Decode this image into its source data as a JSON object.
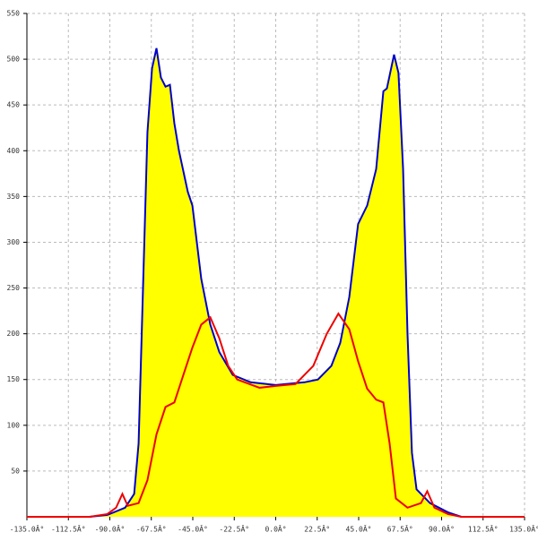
{
  "chart_data": {
    "type": "line",
    "xlim": [
      -135,
      135
    ],
    "ylim": [
      0,
      550
    ],
    "xticks": [
      {
        "value": -135,
        "label": "-135.0Â°"
      },
      {
        "value": -112.5,
        "label": "-112.5Â°"
      },
      {
        "value": -90,
        "label": "-90.0Â°"
      },
      {
        "value": -67.5,
        "label": "-67.5Â°"
      },
      {
        "value": -45,
        "label": "-45.0Â°"
      },
      {
        "value": -22.5,
        "label": "-22.5Â°"
      },
      {
        "value": 0,
        "label": "0.0Â°"
      },
      {
        "value": 22.5,
        "label": "22.5Â°"
      },
      {
        "value": 45,
        "label": "45.0Â°"
      },
      {
        "value": 67.5,
        "label": "67.5Â°"
      },
      {
        "value": 90,
        "label": "90.0Â°"
      },
      {
        "value": 112.5,
        "label": "112.5Â°"
      },
      {
        "value": 135,
        "label": "135.0Â°"
      }
    ],
    "yticks": [
      50,
      100,
      150,
      200,
      250,
      300,
      350,
      400,
      450,
      500,
      550
    ],
    "grid": true,
    "series": [
      {
        "color": "#0000cc",
        "fill": "#ffff00",
        "x": [
          -101,
          -91.4,
          -81.7,
          -76.8,
          -74.4,
          -72,
          -69.6,
          -67.1,
          -64.7,
          -62.3,
          -59.8,
          -57.4,
          -55,
          -52.5,
          -47.7,
          -45.2,
          -42.8,
          -40.4,
          -35.5,
          -30.6,
          -23.3,
          -13.6,
          0,
          15.6,
          22.9,
          30.2,
          35,
          39.9,
          44.7,
          49.6,
          54.5,
          58.4,
          60.3,
          64.2,
          66.6,
          69.1,
          71.5,
          73.9,
          76.4,
          83.7,
          93.4,
          100.7
        ],
        "values": [
          0,
          2,
          10,
          25,
          80,
          250,
          420,
          490,
          512,
          480,
          470,
          472,
          430,
          400,
          355,
          340,
          300,
          260,
          210,
          180,
          155,
          147,
          144,
          147,
          150,
          165,
          190,
          240,
          320,
          340,
          380,
          465,
          468,
          505,
          485,
          380,
          200,
          70,
          30,
          15,
          5,
          0
        ]
      },
      {
        "color": "#ee0000",
        "x": [
          -135,
          -101,
          -91.4,
          -86.6,
          -83.2,
          -80.3,
          -74.4,
          -69.6,
          -64.7,
          -59.8,
          -55,
          -50.1,
          -45.2,
          -40.4,
          -35.5,
          -30.6,
          -25.8,
          -20.9,
          -8.8,
          0,
          10.7,
          20.4,
          27.7,
          34,
          39.9,
          44.7,
          49.6,
          54.5,
          58.4,
          61.8,
          65.2,
          71.5,
          78.8,
          82.2,
          86.1,
          93.4,
          100.7,
          135
        ],
        "values": [
          0,
          0,
          3,
          10,
          25,
          12,
          15,
          40,
          90,
          120,
          125,
          155,
          185,
          210,
          218,
          195,
          165,
          150,
          141,
          143,
          145,
          165,
          200,
          222,
          205,
          170,
          140,
          128,
          125,
          80,
          20,
          10,
          15,
          28,
          10,
          3,
          0,
          0
        ]
      }
    ]
  }
}
